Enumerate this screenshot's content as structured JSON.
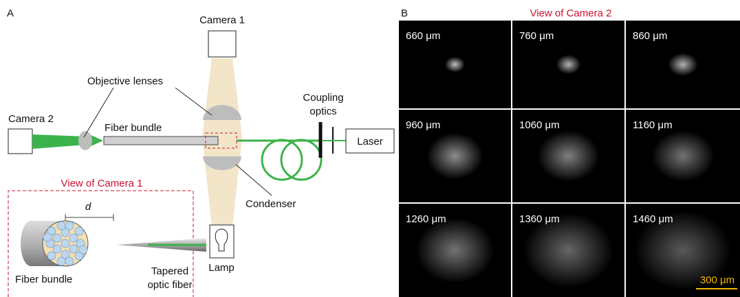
{
  "panel_a": {
    "label": "A",
    "camera_1": "Camera 1",
    "camera_2": "Camera 2",
    "objective_lenses": "Objective lenses",
    "fiber_bundle": "Fiber bundle",
    "coupling_optics": [
      "Coupling",
      "optics"
    ],
    "laser": "Laser",
    "condenser": "Condenser",
    "lamp": "Lamp",
    "inset": {
      "title": "View of Camera 1",
      "distance": "d",
      "fiber_bundle": "Fiber bundle",
      "tapered_fiber": [
        "Tapered",
        "optic fiber"
      ]
    }
  },
  "panel_b": {
    "label": "B",
    "title": "View of Camera 2",
    "images": [
      "660 μm",
      "760 μm",
      "860 μm",
      "960 μm",
      "1060 μm",
      "1160 μm",
      "1260 μm",
      "1360 μm",
      "1460 μm"
    ],
    "scale_bar": "300 μm"
  }
}
